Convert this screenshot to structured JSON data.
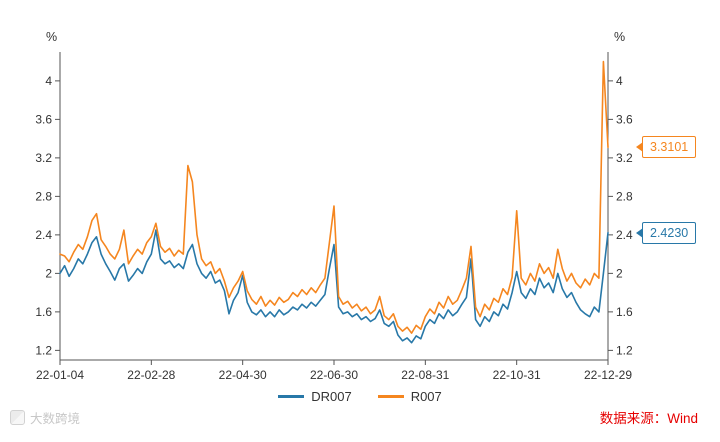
{
  "page": {
    "unit_left": "%",
    "unit_right": "%",
    "source_text": "数据来源：Wind",
    "watermark_text": "大数跨境"
  },
  "colors": {
    "dr007": "#2878a8",
    "r007": "#f5861f",
    "source": "#e60000",
    "axis": "#555555",
    "watermark": "#c8c8c8"
  },
  "callouts": [
    {
      "series": "R007",
      "label": "3.3101",
      "value": 3.3101,
      "color": "#f5861f"
    },
    {
      "series": "DR007",
      "label": "2.4230",
      "value": 2.423,
      "color": "#2878a8"
    }
  ],
  "chart_data": {
    "type": "line",
    "title": "",
    "unit": "%",
    "grid": false,
    "legend_position": "bottom",
    "ylim": [
      1.1,
      4.3
    ],
    "y_ticks": [
      1.2,
      1.6,
      2,
      2.4,
      2.8,
      3.2,
      3.6,
      4
    ],
    "x_tick_labels": [
      "22-01-04",
      "22-02-28",
      "22-04-30",
      "22-06-30",
      "22-08-31",
      "22-10-31",
      "22-12-29"
    ],
    "x_tick_indices": [
      0,
      20,
      40,
      60,
      80,
      100,
      120
    ],
    "series": [
      {
        "name": "DR007",
        "color": "#2878a8",
        "last_value": 2.423,
        "values": [
          2.0,
          2.08,
          1.97,
          2.05,
          2.15,
          2.1,
          2.2,
          2.32,
          2.38,
          2.2,
          2.1,
          2.02,
          1.93,
          2.05,
          2.1,
          1.92,
          1.98,
          2.05,
          2.0,
          2.12,
          2.2,
          2.45,
          2.15,
          2.1,
          2.13,
          2.06,
          2.1,
          2.05,
          2.22,
          2.3,
          2.1,
          2.0,
          1.95,
          2.02,
          1.9,
          1.93,
          1.82,
          1.58,
          1.72,
          1.8,
          1.98,
          1.7,
          1.6,
          1.57,
          1.62,
          1.55,
          1.6,
          1.55,
          1.62,
          1.57,
          1.6,
          1.65,
          1.62,
          1.68,
          1.64,
          1.7,
          1.66,
          1.72,
          1.78,
          2.05,
          2.3,
          1.65,
          1.58,
          1.6,
          1.55,
          1.58,
          1.52,
          1.55,
          1.5,
          1.53,
          1.62,
          1.48,
          1.45,
          1.5,
          1.36,
          1.3,
          1.33,
          1.28,
          1.35,
          1.32,
          1.45,
          1.52,
          1.48,
          1.58,
          1.53,
          1.62,
          1.56,
          1.6,
          1.68,
          1.75,
          2.15,
          1.52,
          1.45,
          1.55,
          1.5,
          1.6,
          1.56,
          1.68,
          1.63,
          1.8,
          2.02,
          1.8,
          1.74,
          1.84,
          1.78,
          1.95,
          1.85,
          1.9,
          1.8,
          2.0,
          1.84,
          1.75,
          1.8,
          1.7,
          1.62,
          1.58,
          1.55,
          1.65,
          1.6,
          2.0,
          2.423
        ]
      },
      {
        "name": "R007",
        "color": "#f5861f",
        "last_value": 3.3101,
        "values": [
          2.2,
          2.18,
          2.12,
          2.22,
          2.3,
          2.25,
          2.38,
          2.55,
          2.62,
          2.35,
          2.28,
          2.2,
          2.15,
          2.25,
          2.45,
          2.1,
          2.18,
          2.25,
          2.2,
          2.32,
          2.38,
          2.52,
          2.28,
          2.22,
          2.26,
          2.18,
          2.24,
          2.2,
          3.12,
          2.95,
          2.4,
          2.15,
          2.08,
          2.12,
          2.0,
          2.05,
          1.92,
          1.75,
          1.85,
          1.92,
          2.02,
          1.82,
          1.73,
          1.68,
          1.76,
          1.66,
          1.72,
          1.67,
          1.75,
          1.7,
          1.73,
          1.8,
          1.76,
          1.83,
          1.78,
          1.85,
          1.8,
          1.88,
          1.95,
          2.32,
          2.7,
          1.76,
          1.68,
          1.71,
          1.64,
          1.68,
          1.61,
          1.65,
          1.58,
          1.62,
          1.76,
          1.56,
          1.52,
          1.58,
          1.45,
          1.4,
          1.44,
          1.38,
          1.46,
          1.42,
          1.55,
          1.63,
          1.58,
          1.7,
          1.64,
          1.76,
          1.68,
          1.72,
          1.83,
          1.95,
          2.28,
          1.65,
          1.55,
          1.68,
          1.62,
          1.74,
          1.7,
          1.84,
          1.78,
          1.96,
          2.65,
          1.95,
          1.88,
          2.0,
          1.92,
          2.1,
          2.0,
          2.06,
          1.95,
          2.25,
          2.05,
          1.92,
          2.0,
          1.9,
          1.85,
          1.94,
          1.88,
          2.0,
          1.95,
          4.2,
          3.3101
        ]
      }
    ]
  }
}
